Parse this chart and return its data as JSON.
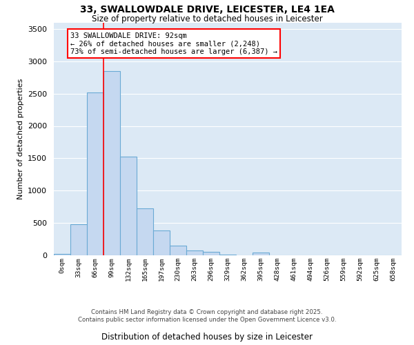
{
  "title_line1": "33, SWALLOWDALE DRIVE, LEICESTER, LE4 1EA",
  "title_line2": "Size of property relative to detached houses in Leicester",
  "xlabel": "Distribution of detached houses by size in Leicester",
  "ylabel": "Number of detached properties",
  "bar_color": "#c5d8f0",
  "bar_edge_color": "#6aaad4",
  "background_color": "#dce9f5",
  "grid_color": "#ffffff",
  "categories": [
    "0sqm",
    "33sqm",
    "66sqm",
    "99sqm",
    "132sqm",
    "165sqm",
    "197sqm",
    "230sqm",
    "263sqm",
    "296sqm",
    "329sqm",
    "362sqm",
    "395sqm",
    "428sqm",
    "461sqm",
    "494sqm",
    "526sqm",
    "559sqm",
    "592sqm",
    "625sqm",
    "658sqm"
  ],
  "values": [
    20,
    480,
    2520,
    2850,
    1530,
    730,
    380,
    145,
    70,
    50,
    10,
    5,
    40,
    0,
    0,
    0,
    0,
    0,
    0,
    0,
    0
  ],
  "ylim": [
    0,
    3600
  ],
  "yticks": [
    0,
    500,
    1000,
    1500,
    2000,
    2500,
    3000,
    3500
  ],
  "red_line_x": 2.5,
  "annotation_text": "33 SWALLOWDALE DRIVE: 92sqm\n← 26% of detached houses are smaller (2,248)\n73% of semi-detached houses are larger (6,387) →",
  "footer_line1": "Contains HM Land Registry data © Crown copyright and database right 2025.",
  "footer_line2": "Contains public sector information licensed under the Open Government Licence v3.0."
}
